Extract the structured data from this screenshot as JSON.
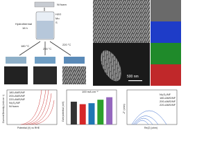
{
  "schematic": {
    "ni_foam": "Ni foam",
    "hydrothermal": "Hydrothermal",
    "time": "16 h",
    "precursors": [
      "H2O",
      "Mo",
      "S"
    ],
    "temperatures": [
      "180 °C",
      "200 °C",
      "220 °C"
    ]
  },
  "sem": {
    "scale_bar": "500 nm"
  },
  "plots": {
    "lsv": {
      "y_label": "Current Density (mA cm⁻²)",
      "x_label": "Potential (V) vs RHE",
      "legend": [
        "180-AMS/NF",
        "200-AMS/NF",
        "220-AMS/NF",
        "Ni₃S₂/NF",
        "Ni foam"
      ]
    },
    "bar": {
      "title": "100 mA cm⁻²",
      "y_label": "Overpotential (mV)",
      "categories": [
        "180-AMS/NF",
        "200-AMS/NF",
        "220-AMS/NF",
        "Ni₃S₂/NF",
        "Ni foam"
      ],
      "values": [
        230,
        205,
        215,
        250,
        275
      ],
      "ylim": [
        0,
        300
      ],
      "colors": [
        "#333333",
        "#d62728",
        "#1f77b4",
        "#2ca02c",
        "#9467bd"
      ]
    },
    "eis": {
      "y_label": "-Z″ (ohm)",
      "x_label": "Re(Z) (ohm)",
      "legend": [
        "Ni₃S₂/NF",
        "180-AMS/NF",
        "200-AMS/NF",
        "220-AMS/NF"
      ]
    }
  }
}
